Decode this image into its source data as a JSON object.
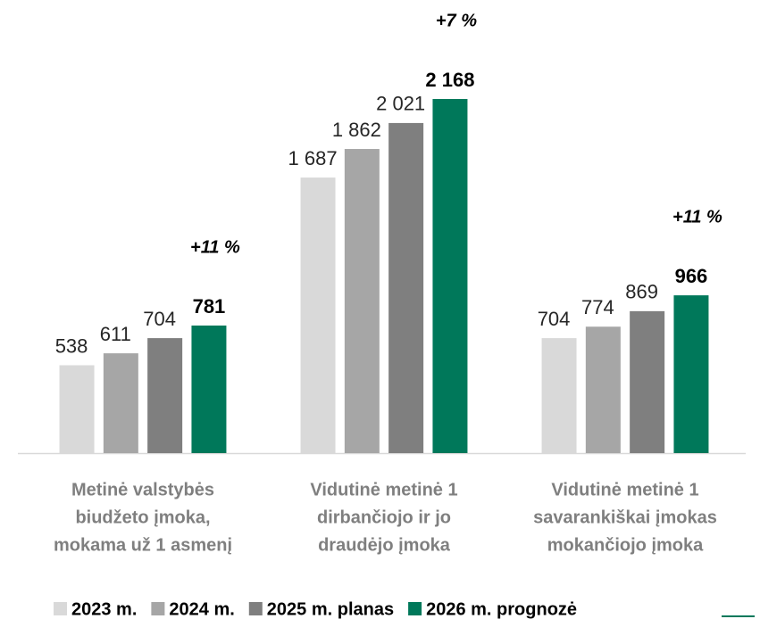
{
  "chart_data": {
    "type": "bar",
    "categories": [
      [
        "Metinė valstybės",
        "biudžeto įmoka,",
        "mokama už 1 asmenį"
      ],
      [
        "Vidutinė metinė 1",
        "dirbančiojo ir jo",
        "draudėjo  įmoka"
      ],
      [
        "Vidutinė metinė 1",
        "savarankiškai įmokas",
        "mokančiojo įmoka"
      ]
    ],
    "series": [
      {
        "name": "2023 m.",
        "color": "#d9d9d9",
        "values": [
          538,
          1687,
          704
        ],
        "value_labels": [
          "538",
          "1 687",
          "704"
        ]
      },
      {
        "name": "2024 m.",
        "color": "#a6a6a6",
        "values": [
          611,
          1862,
          774
        ],
        "value_labels": [
          "611",
          "1 862",
          "774"
        ]
      },
      {
        "name": "2025 m. planas",
        "color": "#7f7f7f",
        "values": [
          704,
          2021,
          869
        ],
        "value_labels": [
          "704",
          "2 021",
          "869"
        ]
      },
      {
        "name": "2026 m. prognozė",
        "color": "#00785a",
        "values": [
          781,
          2168,
          966
        ],
        "value_labels": [
          "781",
          "2 168",
          "966"
        ]
      }
    ],
    "annotations": [
      "+11 %",
      "+7 %",
      "+11 %"
    ],
    "legend": "bottom"
  }
}
